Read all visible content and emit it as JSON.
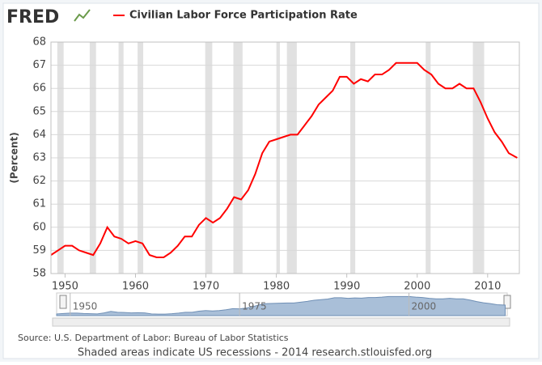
{
  "logo": "FRED",
  "chart_data": {
    "type": "line",
    "legend": "Civilian Labor Force Participation Rate",
    "ylabel": "(Percent)",
    "x": [
      1948,
      1949,
      1950,
      1951,
      1952,
      1953,
      1954,
      1955,
      1956,
      1957,
      1958,
      1959,
      1960,
      1961,
      1962,
      1963,
      1964,
      1965,
      1966,
      1967,
      1968,
      1969,
      1970,
      1971,
      1972,
      1973,
      1974,
      1975,
      1976,
      1977,
      1978,
      1979,
      1980,
      1981,
      1982,
      1983,
      1984,
      1985,
      1986,
      1987,
      1988,
      1989,
      1990,
      1991,
      1992,
      1993,
      1994,
      1995,
      1996,
      1997,
      1998,
      1999,
      2000,
      2001,
      2002,
      2003,
      2004,
      2005,
      2006,
      2007,
      2008,
      2009,
      2010,
      2011,
      2012,
      2013,
      2014.2
    ],
    "series": [
      {
        "name": "Civilian Labor Force Participation Rate",
        "color": "#ff0000",
        "values": [
          58.8,
          59.0,
          59.2,
          59.2,
          59.0,
          58.9,
          58.8,
          59.3,
          60.0,
          59.6,
          59.5,
          59.3,
          59.4,
          59.3,
          58.8,
          58.7,
          58.7,
          58.9,
          59.2,
          59.6,
          59.6,
          60.1,
          60.4,
          60.2,
          60.4,
          60.8,
          61.3,
          61.2,
          61.6,
          62.3,
          63.2,
          63.7,
          63.8,
          63.9,
          64.0,
          64.0,
          64.4,
          64.8,
          65.3,
          65.6,
          65.9,
          66.5,
          66.5,
          66.2,
          66.4,
          66.3,
          66.6,
          66.6,
          66.8,
          67.1,
          67.1,
          67.1,
          67.1,
          66.8,
          66.6,
          66.2,
          66.0,
          66.0,
          66.2,
          66.0,
          66.0,
          65.4,
          64.7,
          64.1,
          63.7,
          63.2,
          63.0
        ]
      }
    ],
    "recessions": [
      [
        1948.9,
        1949.8
      ],
      [
        1953.5,
        1954.4
      ],
      [
        1957.6,
        1958.3
      ],
      [
        1960.3,
        1961.1
      ],
      [
        1969.9,
        1970.9
      ],
      [
        1973.9,
        1975.2
      ],
      [
        1980.0,
        1980.5
      ],
      [
        1981.5,
        1982.9
      ],
      [
        1990.5,
        1991.2
      ],
      [
        2001.2,
        2001.9
      ],
      [
        2007.9,
        2009.5
      ]
    ],
    "recession_color": "#e1e1e1",
    "xlim": [
      1948,
      2014.5
    ],
    "xticks": [
      1950,
      1960,
      1970,
      1980,
      1990,
      2000,
      2010
    ],
    "ylim": [
      58,
      68
    ],
    "yticks": [
      58,
      59,
      60,
      61,
      62,
      63,
      64,
      65,
      66,
      67,
      68
    ],
    "grid": true,
    "navigator_ticks": [
      1950,
      1975,
      2000
    ]
  },
  "footer": {
    "source": "Source: U.S. Department of Labor: Bureau of Labor Statistics",
    "note": "Shaded areas indicate US recessions - 2014 research.stlouisfed.org"
  }
}
